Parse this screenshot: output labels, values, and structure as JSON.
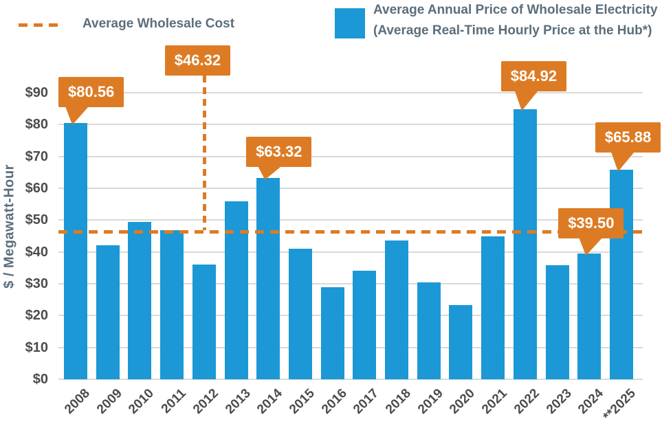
{
  "legend": {
    "avg_line_label": "Average Wholesale Cost",
    "bars_label": "Average Annual Price of Wholesale Electricity (Average Real-Time Hourly Price at the Hub*)"
  },
  "chart_data": {
    "type": "bar",
    "title": "",
    "xlabel": "",
    "ylabel": "$ / Megawatt-Hour",
    "ylim": [
      0,
      90
    ],
    "ytick_step": 10,
    "ytick_prefix": "$",
    "grid": true,
    "legend_position": "top",
    "categories": [
      "2008",
      "2009",
      "2010",
      "2011",
      "2012",
      "2013",
      "2014",
      "2015",
      "2016",
      "2017",
      "2018",
      "2019",
      "2020",
      "2021",
      "2022",
      "2023",
      "2024",
      "**2025"
    ],
    "values": [
      80.56,
      42.0,
      49.5,
      46.8,
      36.0,
      56.0,
      63.32,
      41.0,
      29.0,
      34.0,
      43.5,
      30.5,
      23.3,
      45.0,
      84.92,
      35.8,
      39.5,
      65.88
    ],
    "average_line": {
      "value": 46.32
    },
    "annotations": [
      {
        "category": "2008",
        "text": "$80.56",
        "points_to": "bar"
      },
      {
        "category": "2012",
        "text": "$46.32",
        "points_to": "average-line"
      },
      {
        "category": "2014",
        "text": "$63.32",
        "points_to": "bar"
      },
      {
        "category": "2022",
        "text": "$84.92",
        "points_to": "bar"
      },
      {
        "category": "2024",
        "text": "$39.50",
        "points_to": "bar"
      },
      {
        "category": "**2025",
        "text": "$65.88",
        "points_to": "bar"
      }
    ],
    "colors": {
      "bar": "#1b98d5",
      "accent": "#dd7b24",
      "grid": "#d9d9d9",
      "tick_text": "#4c4c4e",
      "label_text": "#5b6e7c"
    }
  }
}
